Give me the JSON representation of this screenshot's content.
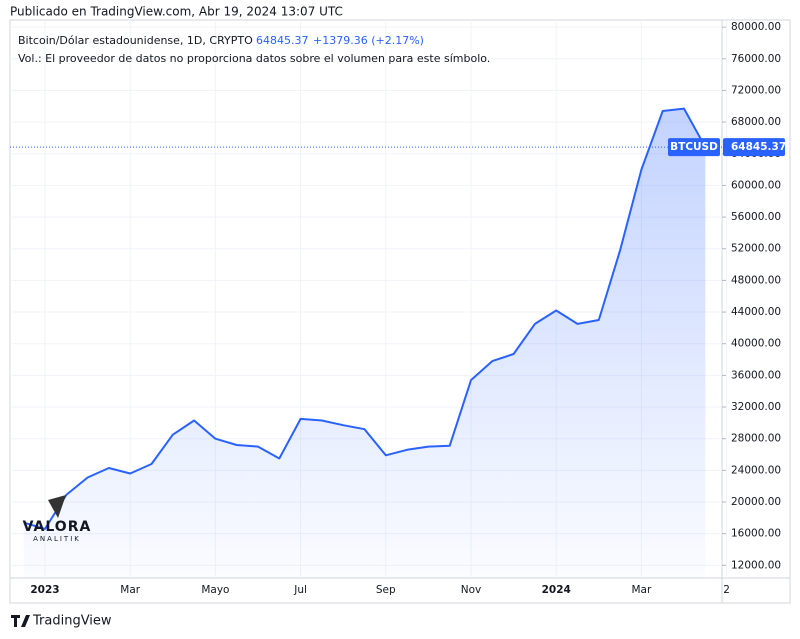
{
  "header": {
    "published": "Publicado en TradingView.com, Abr 19, 2024 13:07 UTC"
  },
  "chart_data": {
    "type": "line",
    "title": "Bitcoin/Dólar estadounidense, 1D, CRYPTO",
    "last_price": 64845.37,
    "change": "+1379.36 (+2.17%)",
    "note": "Vol.: El proveedor de datos no proporciona datos sobre el volumen para este símbolo.",
    "symbol": "BTCUSD",
    "categories": [
      null,
      "2023",
      null,
      null,
      null,
      "Mar",
      null,
      null,
      null,
      "Mayo",
      null,
      null,
      null,
      "Jul",
      null,
      null,
      null,
      "Sep",
      null,
      null,
      null,
      "Nov",
      null,
      null,
      null,
      "2024",
      null,
      null,
      null,
      "Mar",
      null,
      null,
      null,
      "2"
    ],
    "series": [
      {
        "name": "BTCUSD",
        "color": "#2962ff",
        "values": [
          17400,
          16600,
          20900,
          23100,
          24300,
          23600,
          24800,
          28500,
          30300,
          28000,
          27200,
          27000,
          25500,
          30500,
          30300,
          29700,
          29200,
          25900,
          26600,
          27000,
          27100,
          35400,
          37800,
          38700,
          42500,
          44200,
          42500,
          43000,
          51800,
          62000,
          69400,
          69700,
          64845.37,
          null
        ]
      }
    ],
    "ylim": [
      10400,
      80900
    ],
    "yticks": [
      {
        "value": 12000,
        "label": "12000.00"
      },
      {
        "value": 16000,
        "label": "16000.00"
      },
      {
        "value": 20000,
        "label": "20000.00"
      },
      {
        "value": 24000,
        "label": "24000.00"
      },
      {
        "value": 28000,
        "label": "28000.00"
      },
      {
        "value": 32000,
        "label": "32000.00"
      },
      {
        "value": 36000,
        "label": "36000.00"
      },
      {
        "value": 40000,
        "label": "40000.00"
      },
      {
        "value": 44000,
        "label": "44000.00"
      },
      {
        "value": 48000,
        "label": "48000.00"
      },
      {
        "value": 52000,
        "label": "52000.00"
      },
      {
        "value": 56000,
        "label": "56000.00"
      },
      {
        "value": 60000,
        "label": "60000.00"
      },
      {
        "value": 64000,
        "label": "64000.00"
      },
      {
        "value": 68000,
        "label": "68000.00"
      },
      {
        "value": 72000,
        "label": "72000.00"
      },
      {
        "value": 76000,
        "label": "76000.00"
      },
      {
        "value": 80000,
        "label": "80000.00"
      }
    ],
    "grid": true,
    "watermark": {
      "name": "VALORA",
      "sub": "ANALITIK"
    }
  },
  "footer": {
    "brand": "TradingView"
  }
}
